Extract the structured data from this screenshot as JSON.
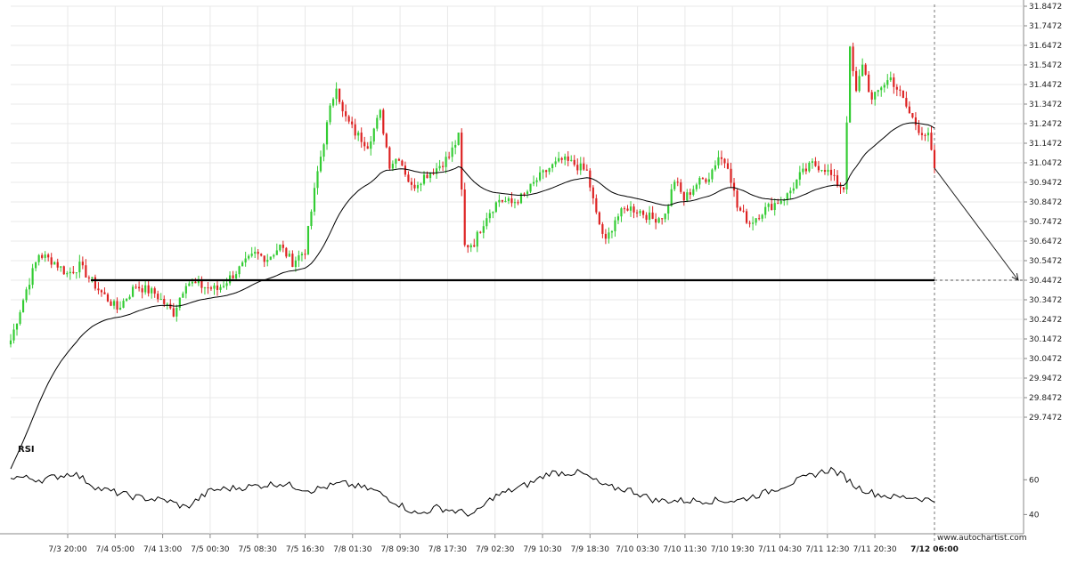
{
  "chart_data": {
    "type": "candlestick",
    "main_panel": {
      "y_axis": {
        "range": [
          29.7472,
          31.8472
        ],
        "tick_labels": [
          "31.8472",
          "31.7472",
          "31.6472",
          "31.5472",
          "31.4472",
          "31.3472",
          "31.2472",
          "31.1472",
          "31.0472",
          "30.9472",
          "30.8472",
          "30.7472",
          "30.6472",
          "30.5472",
          "30.4472",
          "30.3472",
          "30.2472",
          "30.1472",
          "30.0472",
          "29.9472",
          "29.8472",
          "29.7472"
        ]
      },
      "x_axis": {
        "tick_labels": [
          "7/3 20:00",
          "7/4 05:00",
          "7/4 13:00",
          "7/5 00:30",
          "7/5 08:30",
          "7/5 16:30",
          "7/8 01:30",
          "7/8 09:30",
          "7/8 17:30",
          "7/9 02:30",
          "7/9 10:30",
          "7/9 18:30",
          "7/10 03:30",
          "7/10 11:30",
          "7/10 19:30",
          "7/11 04:30",
          "7/11 12:30",
          "7/11 20:30"
        ],
        "last_label": "7/12 06:00"
      },
      "support_level": 30.4472,
      "forecast_target": 30.4472,
      "close_anchors": [
        {
          "i": 0,
          "v": 30.14
        },
        {
          "i": 5,
          "v": 30.4
        },
        {
          "i": 9,
          "v": 30.58
        },
        {
          "i": 14,
          "v": 30.54
        },
        {
          "i": 18,
          "v": 30.48
        },
        {
          "i": 22,
          "v": 30.52
        },
        {
          "i": 28,
          "v": 30.4
        },
        {
          "i": 34,
          "v": 30.3
        },
        {
          "i": 40,
          "v": 30.42
        },
        {
          "i": 46,
          "v": 30.38
        },
        {
          "i": 52,
          "v": 30.28
        },
        {
          "i": 56,
          "v": 30.44
        },
        {
          "i": 60,
          "v": 30.42
        },
        {
          "i": 66,
          "v": 30.4
        },
        {
          "i": 70,
          "v": 30.46
        },
        {
          "i": 74,
          "v": 30.52
        },
        {
          "i": 78,
          "v": 30.58
        },
        {
          "i": 82,
          "v": 30.56
        },
        {
          "i": 86,
          "v": 30.62
        },
        {
          "i": 90,
          "v": 30.54
        },
        {
          "i": 94,
          "v": 30.6
        },
        {
          "i": 98,
          "v": 31.0
        },
        {
          "i": 102,
          "v": 31.32
        },
        {
          "i": 104,
          "v": 31.45
        },
        {
          "i": 106,
          "v": 31.3
        },
        {
          "i": 110,
          "v": 31.2
        },
        {
          "i": 114,
          "v": 31.14
        },
        {
          "i": 118,
          "v": 31.3
        },
        {
          "i": 121,
          "v": 31.04
        },
        {
          "i": 124,
          "v": 31.08
        },
        {
          "i": 128,
          "v": 30.92
        },
        {
          "i": 132,
          "v": 30.98
        },
        {
          "i": 136,
          "v": 31.02
        },
        {
          "i": 140,
          "v": 31.08
        },
        {
          "i": 143,
          "v": 31.18
        },
        {
          "i": 145,
          "v": 30.62
        },
        {
          "i": 148,
          "v": 30.64
        },
        {
          "i": 152,
          "v": 30.78
        },
        {
          "i": 156,
          "v": 30.86
        },
        {
          "i": 160,
          "v": 30.84
        },
        {
          "i": 164,
          "v": 30.88
        },
        {
          "i": 168,
          "v": 30.96
        },
        {
          "i": 172,
          "v": 31.02
        },
        {
          "i": 176,
          "v": 31.06
        },
        {
          "i": 180,
          "v": 31.04
        },
        {
          "i": 184,
          "v": 31.0
        },
        {
          "i": 187,
          "v": 30.78
        },
        {
          "i": 190,
          "v": 30.64
        },
        {
          "i": 193,
          "v": 30.76
        },
        {
          "i": 197,
          "v": 30.82
        },
        {
          "i": 201,
          "v": 30.8
        },
        {
          "i": 205,
          "v": 30.76
        },
        {
          "i": 209,
          "v": 30.78
        },
        {
          "i": 212,
          "v": 30.96
        },
        {
          "i": 215,
          "v": 30.86
        },
        {
          "i": 219,
          "v": 30.94
        },
        {
          "i": 223,
          "v": 30.98
        },
        {
          "i": 226,
          "v": 31.08
        },
        {
          "i": 229,
          "v": 31.04
        },
        {
          "i": 232,
          "v": 30.82
        },
        {
          "i": 236,
          "v": 30.74
        },
        {
          "i": 240,
          "v": 30.8
        },
        {
          "i": 244,
          "v": 30.84
        },
        {
          "i": 248,
          "v": 30.88
        },
        {
          "i": 252,
          "v": 30.98
        },
        {
          "i": 256,
          "v": 31.04
        },
        {
          "i": 260,
          "v": 31.02
        },
        {
          "i": 264,
          "v": 30.94
        },
        {
          "i": 266,
          "v": 30.92
        },
        {
          "i": 268,
          "v": 31.62
        },
        {
          "i": 270,
          "v": 31.4
        },
        {
          "i": 272,
          "v": 31.56
        },
        {
          "i": 275,
          "v": 31.36
        },
        {
          "i": 278,
          "v": 31.44
        },
        {
          "i": 281,
          "v": 31.48
        },
        {
          "i": 284,
          "v": 31.4
        },
        {
          "i": 287,
          "v": 31.3
        },
        {
          "i": 290,
          "v": 31.22
        },
        {
          "i": 293,
          "v": 31.18
        },
        {
          "i": 295,
          "v": 31.02
        }
      ]
    },
    "rsi_panel": {
      "title": "RSI",
      "tick_labels": [
        "60",
        "40"
      ],
      "range": [
        32,
        74
      ],
      "anchors": [
        {
          "i": 0,
          "v": 62
        },
        {
          "i": 10,
          "v": 60
        },
        {
          "i": 20,
          "v": 64
        },
        {
          "i": 28,
          "v": 55
        },
        {
          "i": 40,
          "v": 50
        },
        {
          "i": 50,
          "v": 48
        },
        {
          "i": 56,
          "v": 44
        },
        {
          "i": 64,
          "v": 54
        },
        {
          "i": 76,
          "v": 56
        },
        {
          "i": 86,
          "v": 58
        },
        {
          "i": 96,
          "v": 54
        },
        {
          "i": 106,
          "v": 58
        },
        {
          "i": 116,
          "v": 54
        },
        {
          "i": 124,
          "v": 46
        },
        {
          "i": 130,
          "v": 40
        },
        {
          "i": 136,
          "v": 44
        },
        {
          "i": 142,
          "v": 42
        },
        {
          "i": 148,
          "v": 40
        },
        {
          "i": 154,
          "v": 50
        },
        {
          "i": 160,
          "v": 54
        },
        {
          "i": 166,
          "v": 58
        },
        {
          "i": 172,
          "v": 64
        },
        {
          "i": 182,
          "v": 64
        },
        {
          "i": 190,
          "v": 56
        },
        {
          "i": 198,
          "v": 54
        },
        {
          "i": 206,
          "v": 48
        },
        {
          "i": 214,
          "v": 48
        },
        {
          "i": 222,
          "v": 48
        },
        {
          "i": 232,
          "v": 48
        },
        {
          "i": 240,
          "v": 52
        },
        {
          "i": 246,
          "v": 56
        },
        {
          "i": 252,
          "v": 60
        },
        {
          "i": 258,
          "v": 64
        },
        {
          "i": 262,
          "v": 66
        },
        {
          "i": 266,
          "v": 62
        },
        {
          "i": 270,
          "v": 56
        },
        {
          "i": 276,
          "v": 52
        },
        {
          "i": 282,
          "v": 50
        },
        {
          "i": 288,
          "v": 50
        },
        {
          "i": 295,
          "v": 48
        }
      ]
    },
    "colors": {
      "up": "#33cc33",
      "down": "#dd2222",
      "line": "#000000",
      "grid": "#e8e8e8"
    }
  },
  "watermark": "www.autochartist.com"
}
